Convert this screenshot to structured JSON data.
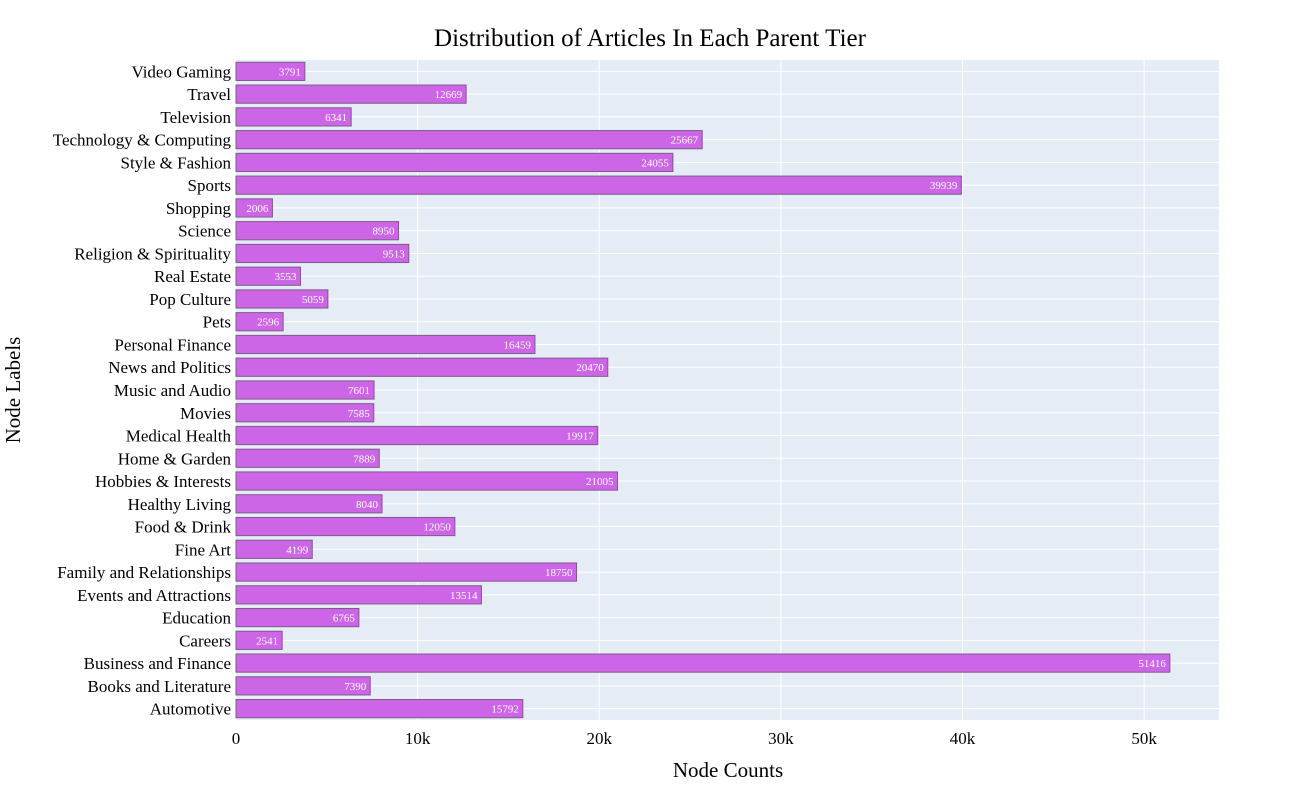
{
  "chart_data": {
    "type": "bar",
    "orientation": "horizontal",
    "title": "Distribution of Articles In Each Parent Tier",
    "xlabel": "Node Counts",
    "ylabel": "Node Labels",
    "xlim": [
      0,
      54122
    ],
    "xticks": [
      {
        "value": 0,
        "label": "0"
      },
      {
        "value": 10000,
        "label": "10k"
      },
      {
        "value": 20000,
        "label": "20k"
      },
      {
        "value": 30000,
        "label": "30k"
      },
      {
        "value": 40000,
        "label": "40k"
      },
      {
        "value": 50000,
        "label": "50k"
      }
    ],
    "grid": true,
    "categories": [
      "Automotive",
      "Books and Literature",
      "Business and Finance",
      "Careers",
      "Education",
      "Events and Attractions",
      "Family and Relationships",
      "Fine Art",
      "Food & Drink",
      "Healthy Living",
      "Hobbies & Interests",
      "Home & Garden",
      "Medical Health",
      "Movies",
      "Music and Audio",
      "News and Politics",
      "Personal Finance",
      "Pets",
      "Pop Culture",
      "Real Estate",
      "Religion & Spirituality",
      "Science",
      "Shopping",
      "Sports",
      "Style & Fashion",
      "Technology & Computing",
      "Television",
      "Travel",
      "Video Gaming"
    ],
    "values": [
      15792,
      7390,
      51416,
      2541,
      6765,
      13514,
      18750,
      4199,
      12050,
      8040,
      21005,
      7889,
      19917,
      7585,
      7601,
      20470,
      16459,
      2596,
      5059,
      3553,
      9513,
      8950,
      2006,
      39939,
      24055,
      25667,
      6341,
      12669,
      3791
    ],
    "colors": {
      "bar_fill": "#cc66e6",
      "bar_stroke": "#7f5a8a",
      "plot_background": "#e5ecf6",
      "grid": "#ffffff",
      "bar_label": "#ffffff",
      "text": "#000000"
    }
  }
}
